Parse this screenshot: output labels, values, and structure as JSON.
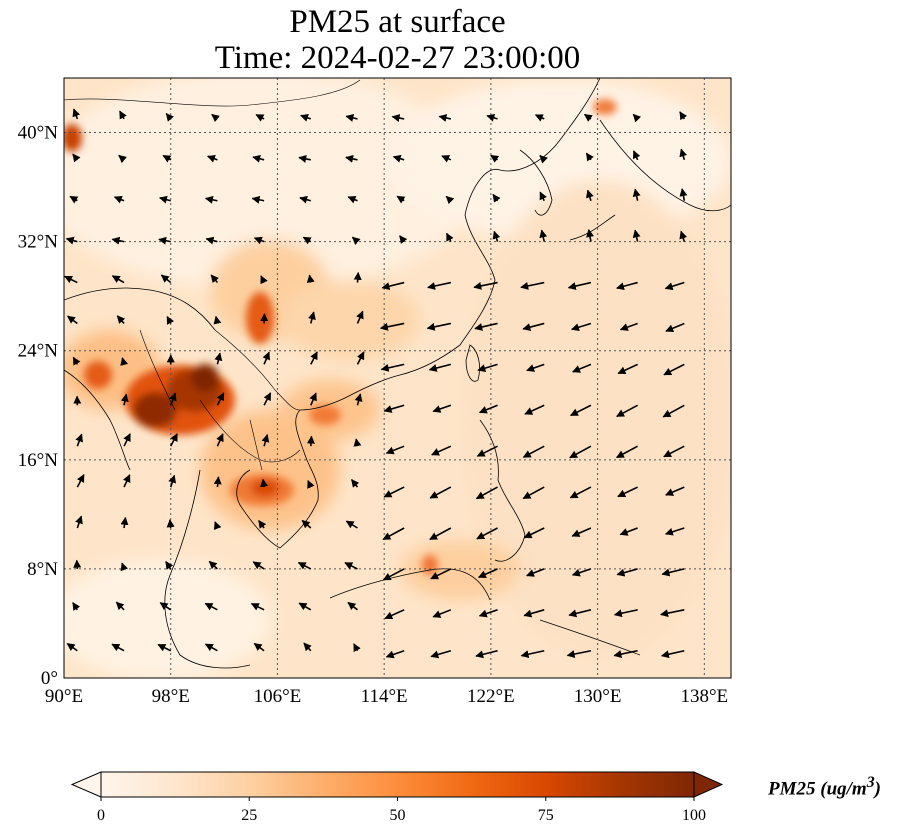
{
  "title": {
    "line1": "PM25 at surface",
    "line2": "Time: 2024-02-27 23:00:00"
  },
  "map": {
    "lon_range": [
      90,
      140
    ],
    "lat_range": [
      0,
      44
    ],
    "lon_ticks": [
      "90°E",
      "98°E",
      "106°E",
      "114°E",
      "122°E",
      "130°E",
      "138°E"
    ],
    "lat_ticks": [
      "0°",
      "8°N",
      "16°N",
      "24°N",
      "32°N",
      "40°N"
    ],
    "gridlines": "dotted",
    "field": "PM25 concentration (shaded)",
    "wind_vectors": true
  },
  "colorbar": {
    "label": "PM25 (ug/m",
    "label_sup": "3",
    "label_close": ")",
    "ticks": [
      "0",
      "25",
      "50",
      "75",
      "100"
    ],
    "range": [
      0,
      100
    ],
    "colormap": [
      "#fff5eb",
      "#fee6ce",
      "#fdd0a2",
      "#fdae6b",
      "#fd8d3c",
      "#f16913",
      "#d94801",
      "#a63603",
      "#7f2704"
    ],
    "extend": "both"
  }
}
